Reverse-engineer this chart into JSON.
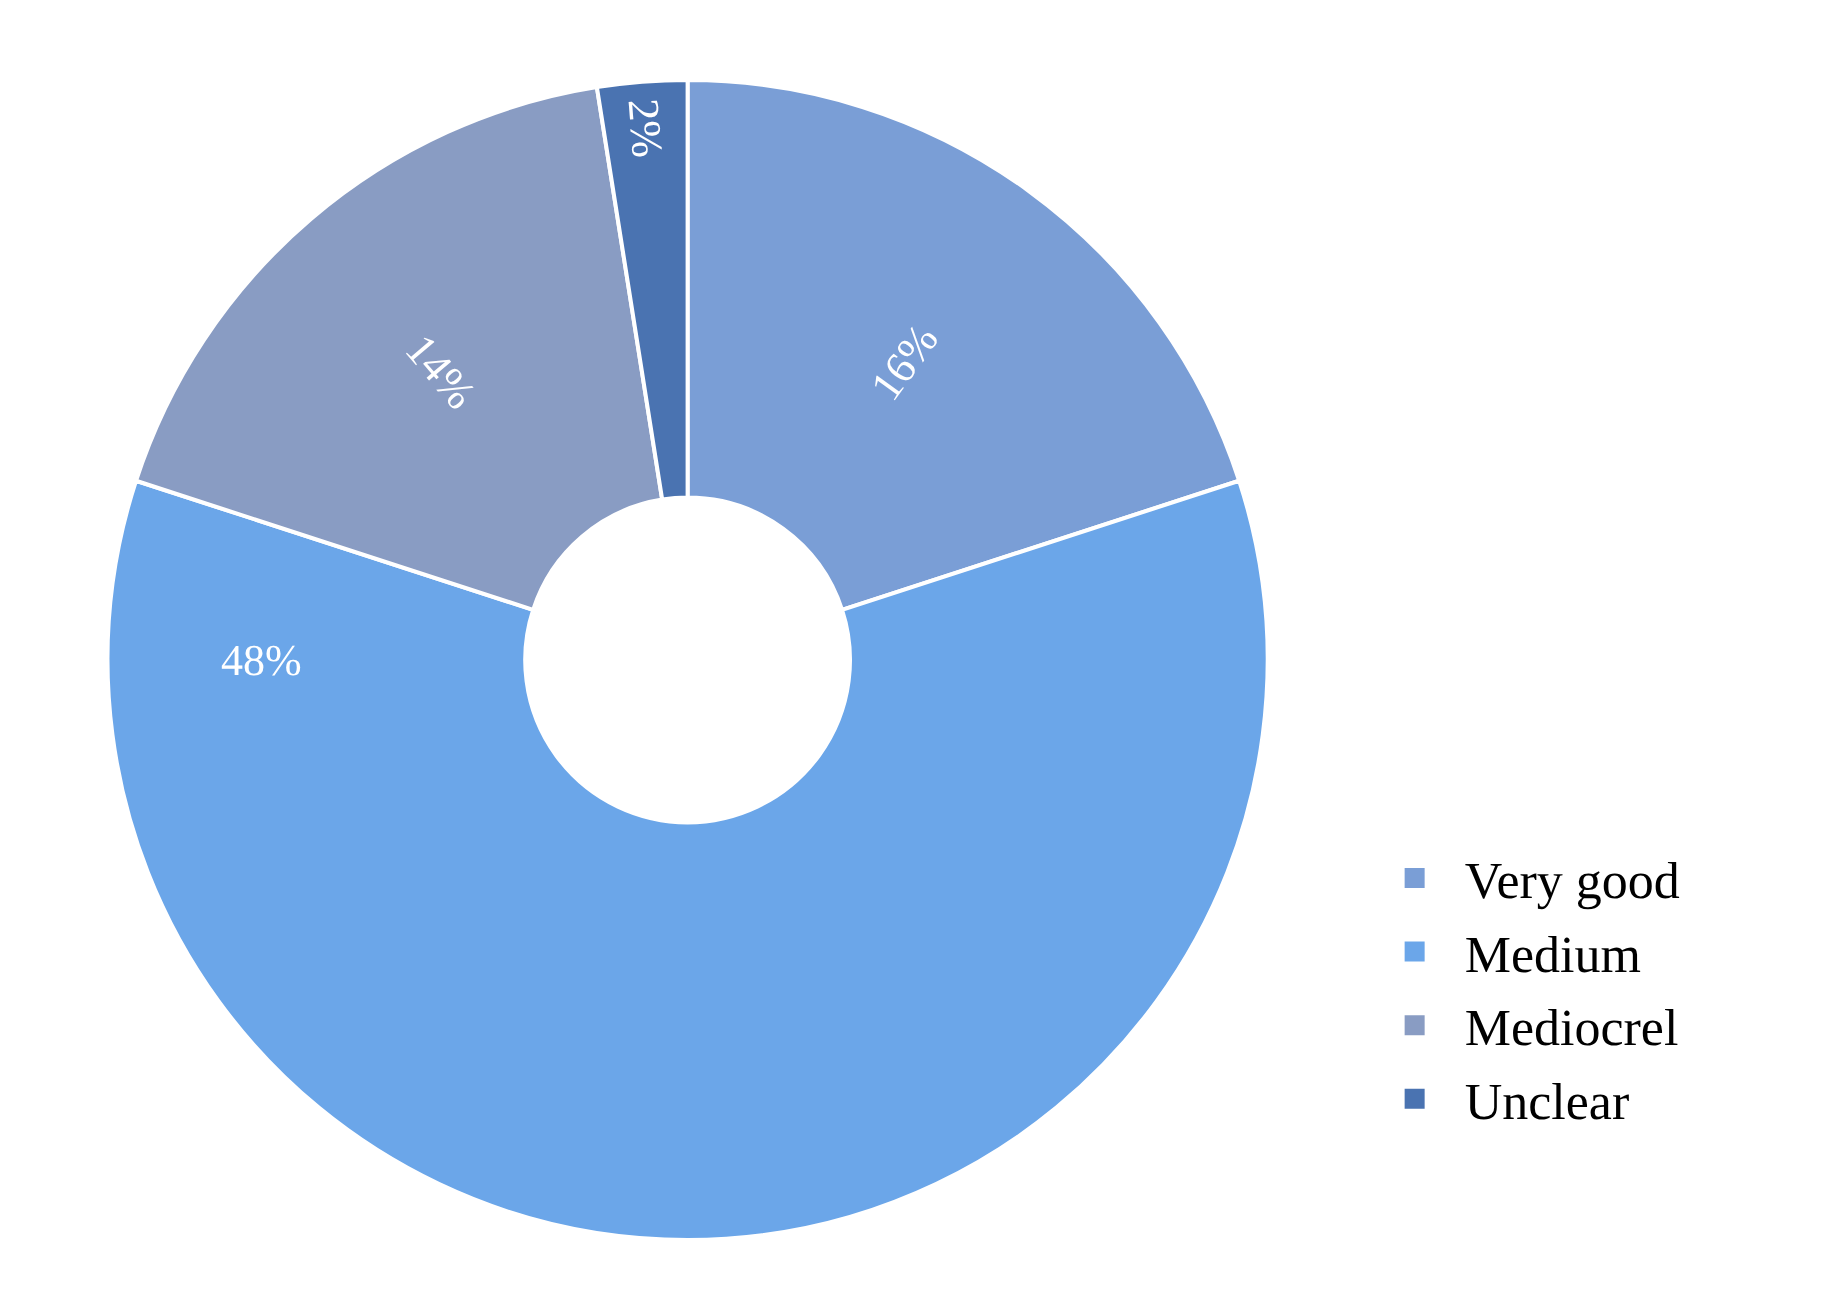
{
  "chart_data": {
    "type": "donut",
    "categories": [
      "Very good",
      "Medium",
      "Mediocrel",
      "Unclear"
    ],
    "values": [
      16,
      48,
      14,
      2
    ],
    "colors": [
      "#7a9ed6",
      "#6ba6e9",
      "#899cc3",
      "#4a73b1"
    ],
    "value_labels": [
      "16%",
      "48%",
      "14%",
      "2%"
    ],
    "legend": "bottom right"
  }
}
